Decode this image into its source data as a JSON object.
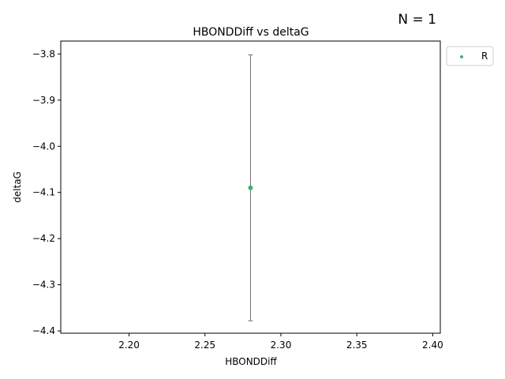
{
  "chart_data": {
    "type": "scatter",
    "title": "HBONDDiff vs deltaG",
    "xlabel": "HBONDDiff",
    "ylabel": "deltaG",
    "annotation": "N = 1",
    "xlim": [
      2.155,
      2.405
    ],
    "ylim": [
      -4.405,
      -3.772
    ],
    "xticks": [
      "2.20",
      "2.25",
      "2.30",
      "2.35",
      "2.40"
    ],
    "xtick_values": [
      2.2,
      2.25,
      2.3,
      2.35,
      2.4
    ],
    "yticks": [
      "−3.8",
      "−3.9",
      "−4.0",
      "−4.1",
      "−4.2",
      "−4.3",
      "−4.4"
    ],
    "ytick_values": [
      -3.8,
      -3.9,
      -4.0,
      -4.1,
      -4.2,
      -4.3,
      -4.4
    ],
    "grid": false,
    "legend_position": "outside-top-right",
    "series": [
      {
        "name": "R",
        "color": "#3cb371",
        "points": [
          {
            "x": 2.28,
            "y": -4.09,
            "err_low": -4.378,
            "err_high": -3.802
          }
        ]
      }
    ],
    "errorbar_color": "#707070"
  }
}
